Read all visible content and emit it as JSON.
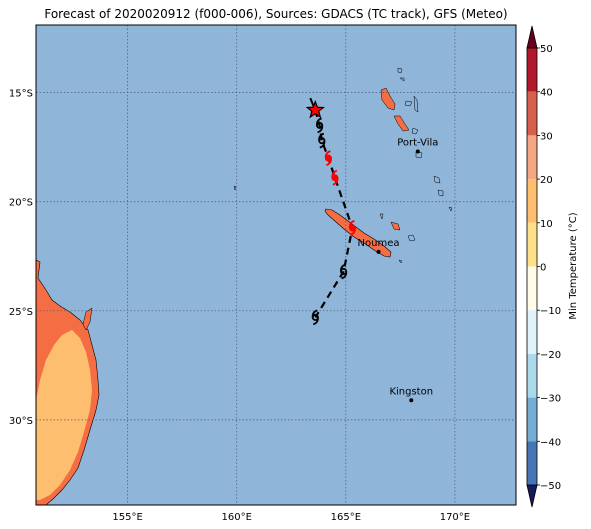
{
  "title": "Forecast of 2020020912 (f000-006), Sources: GDACS (TC track), GFS (Meteo)",
  "colors": {
    "ocean": "#8fb5d9",
    "land_warm": "#f46d43",
    "land_hot": "#fdae61",
    "land_warmest": "#fdbf6f",
    "track": "#000000",
    "storm_red": "#ff0000",
    "grid": "#4a5a7a"
  },
  "axes": {
    "lon_ticks": [
      {
        "value": 155,
        "label": "155°E"
      },
      {
        "value": 160,
        "label": "160°E"
      },
      {
        "value": 165,
        "label": "165°E"
      },
      {
        "value": 170,
        "label": "170°E"
      }
    ],
    "lat_ticks": [
      {
        "value": -15,
        "label": "15°S"
      },
      {
        "value": -20,
        "label": "20°S"
      },
      {
        "value": -25,
        "label": "25°S"
      },
      {
        "value": -30,
        "label": "30°S"
      }
    ]
  },
  "places": [
    {
      "name": "Port-Vila",
      "lon": 168.3,
      "lat": -17.7
    },
    {
      "name": "Noumea",
      "lon": 166.5,
      "lat": -22.3
    },
    {
      "name": "Kingston",
      "lon": 168.0,
      "lat": -29.1
    }
  ],
  "track": {
    "current": {
      "lon": 163.6,
      "lat": -15.8
    },
    "points": [
      {
        "lon": 163.8,
        "lat": -16.5,
        "type": "storm"
      },
      {
        "lon": 163.9,
        "lat": -17.2,
        "type": "storm"
      },
      {
        "lon": 164.2,
        "lat": -18.0,
        "type": "red"
      },
      {
        "lon": 164.5,
        "lat": -18.9,
        "type": "red"
      },
      {
        "lon": 165.3,
        "lat": -21.2,
        "type": "red"
      },
      {
        "lon": 164.9,
        "lat": -23.2,
        "type": "storm"
      },
      {
        "lon": 163.6,
        "lat": -25.3,
        "type": "storm"
      }
    ]
  },
  "colorbar": {
    "label": "Min Temperature (°C)",
    "ticks": [
      "50",
      "40",
      "30",
      "20",
      "10",
      "0",
      "−10",
      "−20",
      "−30",
      "−40",
      "−50"
    ],
    "colors": [
      "#b2182b",
      "#d6604d",
      "#f4a582",
      "#fdbf6f",
      "#fee08b",
      "#fffbe6",
      "#e0f3f8",
      "#abd9e9",
      "#74add1",
      "#4575b4",
      "#313695"
    ]
  }
}
